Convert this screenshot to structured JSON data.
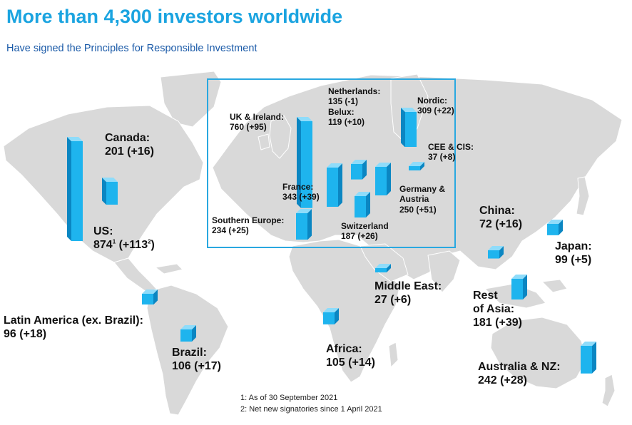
{
  "header": {
    "title": "More than 4,300 investors worldwide",
    "subtitle": "Have signed the Principles for Responsible Investment"
  },
  "colors": {
    "title": "#1ba4e0",
    "subtitle": "#1a5aa8",
    "bar_front": "#1eb4ee",
    "bar_side": "#0b86c2",
    "bar_top": "#8fdcfa",
    "map": "#d9d9d9",
    "inset_border": "#29a8e0"
  },
  "chart_data": {
    "type": "bar",
    "title": "More than 4,300 investors worldwide",
    "subtitle": "Have signed the Principles for Responsible Investment",
    "series": [
      {
        "name": "",
        "points": [
          {
            "region": "US",
            "value": 874,
            "change": 113,
            "text": "874"
          },
          {
            "region": "Canada",
            "value": 201,
            "change": 16,
            "text": "201 (+16)"
          },
          {
            "region": "UK & Ireland",
            "value": 760,
            "change": 95,
            "text": "760 (+95)"
          },
          {
            "region": "Netherlands",
            "value": 135,
            "change": -1,
            "text": "135 (-1)"
          },
          {
            "region": "Belux",
            "value": 119,
            "change": 10,
            "text": "119 (+10)"
          },
          {
            "region": "Nordic",
            "value": 309,
            "change": 22,
            "text": "309 (+22)"
          },
          {
            "region": "CEE & CIS",
            "value": 37,
            "change": 8,
            "text": "37 (+8)"
          },
          {
            "region": "France",
            "value": 343,
            "change": 39,
            "text": "343 (+39)"
          },
          {
            "region": "Germany & Austria",
            "value": 250,
            "change": 51,
            "text": "250 (+51)"
          },
          {
            "region": "Switzerland",
            "value": 187,
            "change": 26,
            "text": "187 (+26)"
          },
          {
            "region": "Southern Europe",
            "value": 234,
            "change": 25,
            "text": "234 (+25)"
          },
          {
            "region": "China",
            "value": 72,
            "change": 16,
            "text": "72 (+16)"
          },
          {
            "region": "Japan",
            "value": 99,
            "change": 5,
            "text": "99 (+5)"
          },
          {
            "region": "Middle East",
            "value": 27,
            "change": 6,
            "text": "27 (+6)"
          },
          {
            "region": "Rest of Asia",
            "value": 181,
            "change": 39,
            "text": "181 (+39)"
          },
          {
            "region": "Latin America (ex. Brazil)",
            "value": 96,
            "change": 18,
            "text": "96 (+18)"
          },
          {
            "region": "Brazil",
            "value": 106,
            "change": 17,
            "text": "106 (+17)"
          },
          {
            "region": "Africa",
            "value": 105,
            "change": 14,
            "text": "105 (+14)"
          },
          {
            "region": "Australia & NZ",
            "value": 242,
            "change": 28,
            "text": "242 (+28)"
          }
        ]
      }
    ]
  },
  "labels": {
    "us_name": "US:",
    "us_value": "874",
    "us_sup1": "1",
    "us_change": " (+113",
    "us_sup2": "2",
    "us_close": ")",
    "canada": [
      "Canada:",
      "201 (+16)"
    ],
    "uk": [
      "UK & Ireland:",
      "760 (+95)"
    ],
    "netherlands": [
      "Netherlands:",
      "135 (-1)"
    ],
    "belux": [
      "Belux:",
      "119 (+10)"
    ],
    "nordic": [
      "Nordic:",
      "309 (+22)"
    ],
    "cee": [
      "CEE & CIS:",
      "37 (+8)"
    ],
    "france": [
      "France:",
      "343 (+39)"
    ],
    "germany": [
      "Germany &",
      "Austria",
      "250 (+51)"
    ],
    "switzerland": [
      "Switzerland",
      "187 (+26)"
    ],
    "southern": [
      "Southern Europe:",
      "234 (+25)"
    ],
    "china": [
      "China:",
      "72 (+16)"
    ],
    "japan": [
      "Japan:",
      "99 (+5)"
    ],
    "middle_east": [
      "Middle East:",
      "27 (+6)"
    ],
    "rest_asia": [
      "Rest",
      "of Asia:",
      "181 (+39)"
    ],
    "latam": [
      "Latin America (ex. Brazil):",
      "96 (+18)"
    ],
    "brazil": [
      "Brazil:",
      "106 (+17)"
    ],
    "africa": [
      "Africa:",
      "105 (+14)"
    ],
    "australia": [
      "Australia & NZ:",
      "242 (+28)"
    ]
  },
  "footnotes": [
    "1: As of 30 September 2021",
    "2: Net new signatories since 1 April 2021"
  ]
}
